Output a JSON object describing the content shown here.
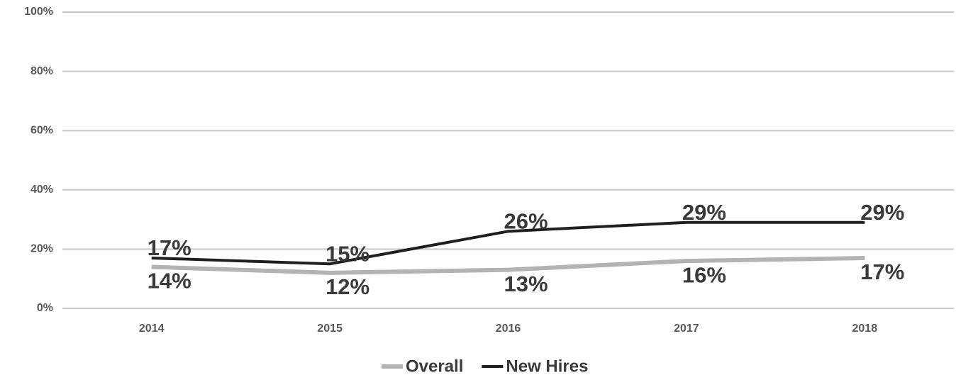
{
  "chart_data": {
    "type": "line",
    "categories": [
      "2014",
      "2015",
      "2016",
      "2017",
      "2018"
    ],
    "series": [
      {
        "name": "Overall",
        "color": "#b3b3b3",
        "values": [
          14,
          12,
          13,
          16,
          17
        ],
        "value_labels": [
          "14%",
          "12%",
          "13%",
          "16%",
          "17%"
        ]
      },
      {
        "name": "New Hires",
        "color": "#1f1f1f",
        "values": [
          17,
          15,
          26,
          29,
          29
        ],
        "value_labels": [
          "17%",
          "15%",
          "26%",
          "29%",
          "29%"
        ]
      }
    ],
    "ylim": [
      0,
      100
    ],
    "yticks": [
      {
        "value": 0,
        "label": "0%"
      },
      {
        "value": 20,
        "label": "20%"
      },
      {
        "value": 40,
        "label": "40%"
      },
      {
        "value": 60,
        "label": "60%"
      },
      {
        "value": 80,
        "label": "80%"
      },
      {
        "value": 100,
        "label": "100%"
      }
    ],
    "grid": true,
    "legend": "bottom"
  }
}
